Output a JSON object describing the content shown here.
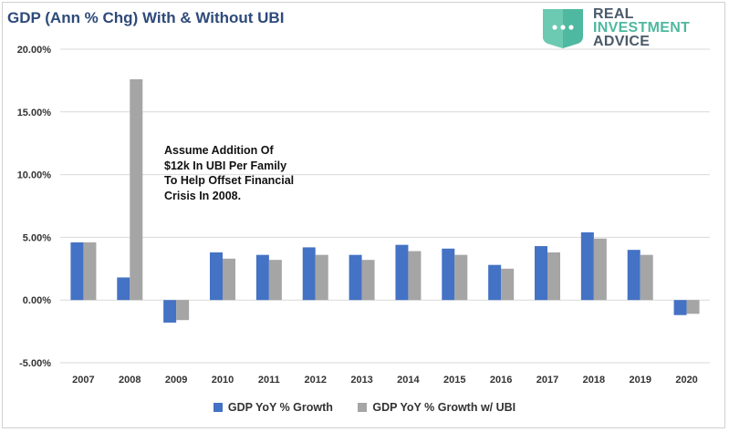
{
  "header": {
    "title": "GDP (Ann % Chg) With & Without UBI"
  },
  "logo": {
    "line1": "REAL",
    "line2": "INVESTMENT",
    "line3": "ADVICE",
    "icon": "chat-bubble-icon"
  },
  "annotation": {
    "line1": "Assume Addition Of",
    "line2": "$12k In UBI Per Family",
    "line3": "To Help Offset Financial",
    "line4": "Crisis In 2008."
  },
  "colors": {
    "series1": "#4472c4",
    "series2": "#a5a5a5",
    "grid": "#d9d9d9",
    "logo_teal": "#4fb8a0"
  },
  "chart_data": {
    "type": "bar",
    "title": "GDP (Ann % Chg) With & Without UBI",
    "categories": [
      "2007",
      "2008",
      "2009",
      "2010",
      "2011",
      "2012",
      "2013",
      "2014",
      "2015",
      "2016",
      "2017",
      "2018",
      "2019",
      "2020"
    ],
    "series": [
      {
        "name": "GDP YoY % Growth",
        "values": [
          4.6,
          1.8,
          -1.8,
          3.8,
          3.6,
          4.2,
          3.6,
          4.4,
          4.1,
          2.8,
          4.3,
          5.4,
          4.0,
          -1.2
        ]
      },
      {
        "name": "GDP YoY % Growth w/ UBI",
        "values": [
          4.6,
          17.6,
          -1.6,
          3.3,
          3.2,
          3.6,
          3.2,
          3.9,
          3.6,
          2.5,
          3.8,
          4.9,
          3.6,
          -1.1
        ]
      }
    ],
    "yticks": [
      "-5.00%",
      "0.00%",
      "5.00%",
      "10.00%",
      "15.00%",
      "20.00%"
    ],
    "ytick_values": [
      -5,
      0,
      5,
      10,
      15,
      20
    ],
    "ylim": [
      -5,
      20
    ],
    "xlabel": "",
    "ylabel": "",
    "legend": "bottom",
    "grid": true
  }
}
